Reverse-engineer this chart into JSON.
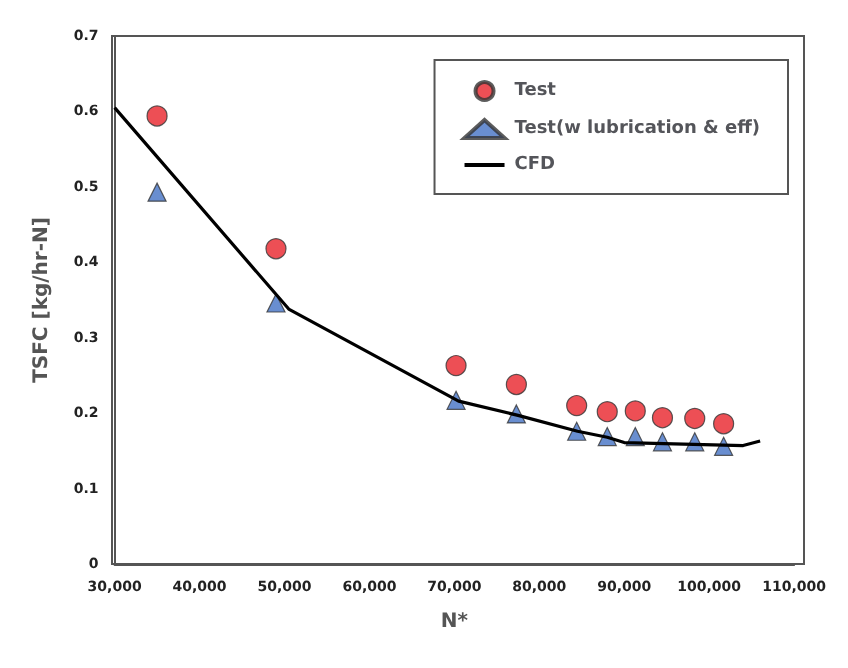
{
  "chart_data": {
    "type": "scatter",
    "xlabel": "N*",
    "ylabel": "TSFC [kg/hr-N]",
    "xlim": [
      30000,
      110000
    ],
    "xticks": [
      {
        "value": 30000,
        "label": "30,000"
      },
      {
        "value": 40000,
        "label": "40,000"
      },
      {
        "value": 50000,
        "label": "50,000"
      },
      {
        "value": 60000,
        "label": "60,000"
      },
      {
        "value": 70000,
        "label": "70,000"
      },
      {
        "value": 80000,
        "label": "80,000"
      },
      {
        "value": 90000,
        "label": "90,000"
      },
      {
        "value": 100000,
        "label": "100,000"
      },
      {
        "value": 110000,
        "label": "110,000"
      }
    ],
    "ylim": [
      0,
      0.7
    ],
    "yticks": [
      0,
      0.1,
      0.2,
      0.3,
      0.4,
      0.5,
      0.6,
      0.7
    ],
    "grid": false,
    "legend": "top right",
    "series": [
      {
        "name": "Test",
        "marker": "circle",
        "color": "#e8232a",
        "x": [
          35000,
          49000,
          70200,
          77300,
          84400,
          88000,
          91300,
          94500,
          98300,
          101700
        ],
        "values": [
          0.594,
          0.418,
          0.263,
          0.238,
          0.21,
          0.202,
          0.203,
          0.194,
          0.193,
          0.186
        ]
      },
      {
        "name": "Test(w lubrication & eff)",
        "marker": "triangle",
        "color": "#4472c4",
        "x": [
          35000,
          49000,
          70200,
          77300,
          84400,
          88000,
          91300,
          94500,
          98300,
          101700
        ],
        "values": [
          0.493,
          0.346,
          0.217,
          0.199,
          0.176,
          0.169,
          0.169,
          0.162,
          0.162,
          0.156
        ]
      },
      {
        "name": "CFD",
        "type": "line",
        "marker": "none",
        "color": "#000000",
        "x": [
          30000,
          50500,
          70500,
          77500,
          84500,
          88000,
          90000,
          104000,
          106000
        ],
        "values": [
          0.605,
          0.338,
          0.216,
          0.197,
          0.176,
          0.168,
          0.161,
          0.157,
          0.163
        ]
      }
    ]
  }
}
